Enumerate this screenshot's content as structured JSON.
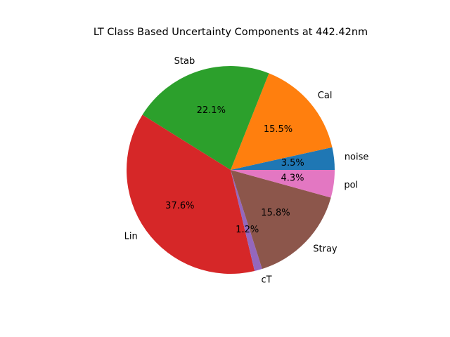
{
  "chart_data": {
    "type": "pie",
    "title": "LT Class Based Uncertainty Components at 442.42nm",
    "labels": [
      "noise",
      "Cal",
      "Stab",
      "Lin",
      "cT",
      "Stray",
      "pol"
    ],
    "values": [
      3.5,
      15.5,
      22.1,
      37.6,
      1.2,
      15.8,
      4.3
    ],
    "value_labels": [
      "3.5%",
      "15.5%",
      "22.1%",
      "37.6%",
      "1.2%",
      "15.8%",
      "4.3%"
    ],
    "colors": [
      "#1f77b4",
      "#ff7f0e",
      "#2ca02c",
      "#d62728",
      "#9467bd",
      "#8c564b",
      "#e377c2"
    ],
    "start_angle": 0,
    "direction": "counterclockwise"
  }
}
